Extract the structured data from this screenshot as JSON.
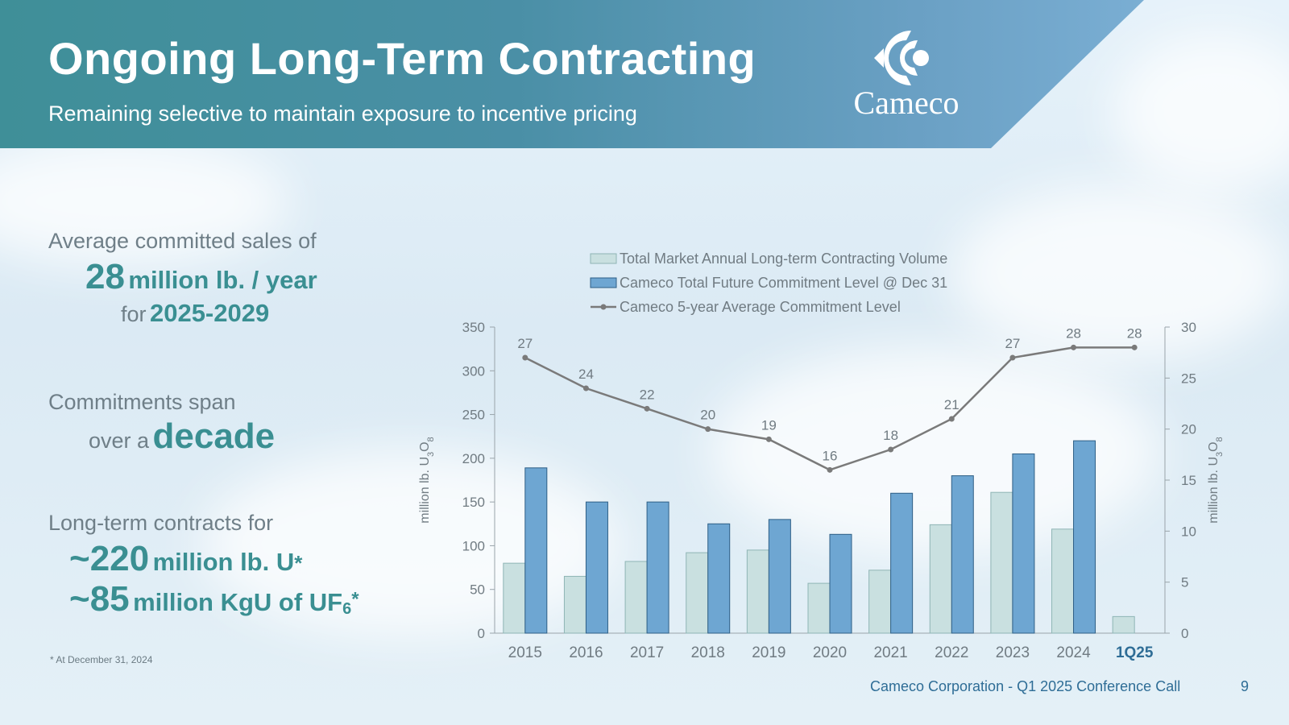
{
  "header": {
    "title": "Ongoing Long-Term Contracting",
    "subtitle": "Remaining selective to maintain exposure to incentive pricing",
    "logo_text": "Cameco"
  },
  "left": {
    "stat1": {
      "label": "Average committed sales of",
      "value": "28",
      "unit": "million lb. / year",
      "for_text": "for",
      "period": "2025-2029"
    },
    "stat2": {
      "label": "Commitments span",
      "over_text": "over a",
      "value": "decade"
    },
    "stat3": {
      "label": "Long-term contracts for",
      "line1_value": "~220",
      "line1_unit": "million lb. U",
      "line1_star": "*",
      "line2_value": "~85",
      "line2_unit": "million KgU of UF",
      "line2_sub": "6",
      "line2_star": "*"
    },
    "footnote": "* At December 31, 2024"
  },
  "footer": {
    "text": "Cameco Corporation  - Q1 2025 Conference Call",
    "page": "9"
  },
  "colors": {
    "header_teal": "#3f8f98",
    "accent_teal": "#3a8f92",
    "market_bar": "#c9e0e0",
    "cameco_bar": "#6ea6d2",
    "line": "#7a7a7a"
  },
  "chart_data": {
    "type": "bar",
    "categories": [
      "2015",
      "2016",
      "2017",
      "2018",
      "2019",
      "2020",
      "2021",
      "2022",
      "2023",
      "2024",
      "1Q25"
    ],
    "highlight_category": "1Q25",
    "series": [
      {
        "name": "Total Market Annual Long-term Contracting Volume",
        "kind": "bar",
        "axis": "left",
        "values": [
          80,
          65,
          82,
          92,
          95,
          57,
          72,
          124,
          161,
          119,
          19
        ]
      },
      {
        "name": "Cameco Total Future Commitment Level @ Dec 31",
        "kind": "bar",
        "axis": "left",
        "values": [
          189,
          150,
          150,
          125,
          130,
          113,
          160,
          180,
          205,
          220,
          null
        ]
      },
      {
        "name": "Cameco 5-year Average Commitment Level",
        "kind": "line",
        "axis": "right",
        "values": [
          27,
          24,
          22,
          20,
          19,
          16,
          18,
          21,
          27,
          28,
          28
        ],
        "labels": [
          "27",
          "24",
          "22",
          "20",
          "19",
          "16",
          "18",
          "21",
          "27",
          "28",
          "28"
        ]
      }
    ],
    "y_left": {
      "label": "million lb. U3O8",
      "label_main": "million lb. U",
      "label_sub1": "3",
      "label_mid": "O",
      "label_sub2": "8",
      "range": [
        0,
        350
      ],
      "ticks": [
        0,
        50,
        100,
        150,
        200,
        250,
        300,
        350
      ]
    },
    "y_right": {
      "label": "million lb. U3O8",
      "label_main": "million lb. U",
      "label_sub1": "3",
      "label_mid": "O",
      "label_sub2": "8",
      "range": [
        0,
        30
      ],
      "ticks": [
        0,
        5,
        10,
        15,
        20,
        25,
        30
      ]
    },
    "legend_position": "top"
  }
}
